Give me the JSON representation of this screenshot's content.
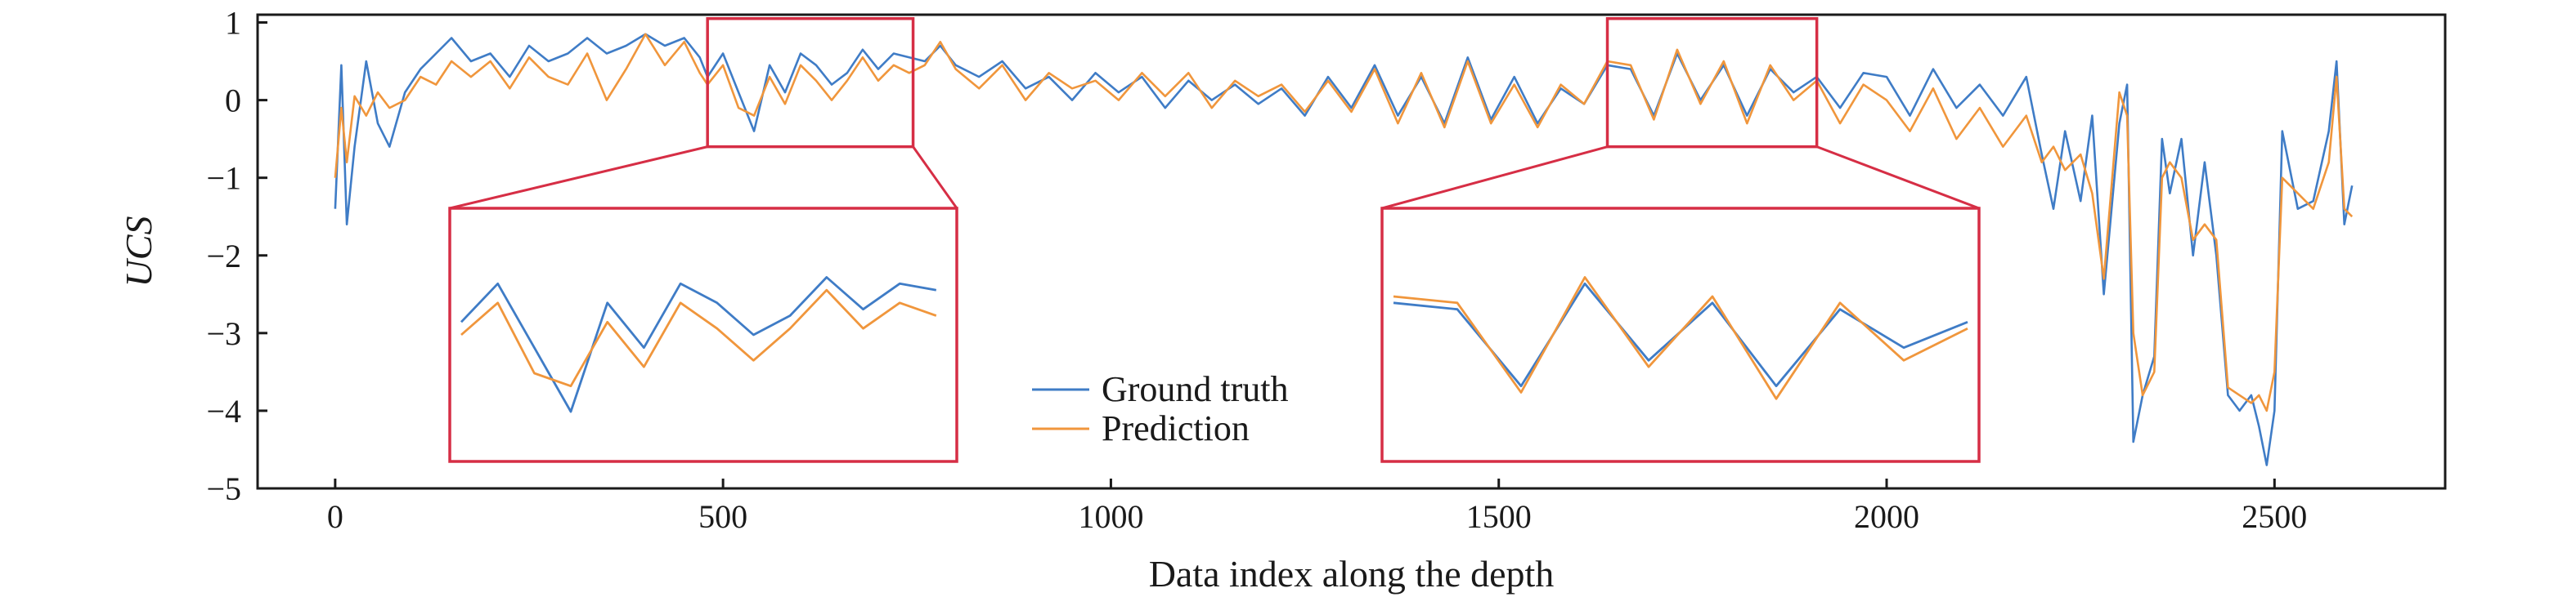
{
  "chart_data": {
    "type": "line",
    "xlabel": "Data index along the depth",
    "ylabel": "UCS",
    "xlim": [
      -100,
      2720
    ],
    "ylim": [
      -5,
      1.1
    ],
    "xticks": [
      0,
      500,
      1000,
      1500,
      2000,
      2500
    ],
    "yticks": [
      1,
      0,
      -1,
      -2,
      -3,
      -4,
      -5
    ],
    "grid": false,
    "legend_position": "lower-center",
    "series": [
      {
        "name": "Ground truth",
        "color": "#3f7cc6",
        "points": [
          [
            0,
            -1.4
          ],
          [
            8,
            0.45
          ],
          [
            15,
            -1.6
          ],
          [
            25,
            -0.6
          ],
          [
            40,
            0.5
          ],
          [
            55,
            -0.3
          ],
          [
            70,
            -0.6
          ],
          [
            90,
            0.1
          ],
          [
            110,
            0.4
          ],
          [
            130,
            0.6
          ],
          [
            150,
            0.8
          ],
          [
            175,
            0.5
          ],
          [
            200,
            0.6
          ],
          [
            225,
            0.3
          ],
          [
            250,
            0.7
          ],
          [
            275,
            0.5
          ],
          [
            300,
            0.6
          ],
          [
            325,
            0.8
          ],
          [
            350,
            0.6
          ],
          [
            375,
            0.7
          ],
          [
            400,
            0.85
          ],
          [
            425,
            0.7
          ],
          [
            450,
            0.8
          ],
          [
            470,
            0.55
          ],
          [
            480,
            0.3
          ],
          [
            500,
            0.6
          ],
          [
            520,
            0.1
          ],
          [
            540,
            -0.4
          ],
          [
            560,
            0.45
          ],
          [
            580,
            0.1
          ],
          [
            600,
            0.6
          ],
          [
            620,
            0.45
          ],
          [
            640,
            0.2
          ],
          [
            660,
            0.35
          ],
          [
            680,
            0.65
          ],
          [
            700,
            0.4
          ],
          [
            720,
            0.6
          ],
          [
            740,
            0.55
          ],
          [
            760,
            0.5
          ],
          [
            780,
            0.7
          ],
          [
            800,
            0.45
          ],
          [
            830,
            0.3
          ],
          [
            860,
            0.5
          ],
          [
            890,
            0.15
          ],
          [
            920,
            0.3
          ],
          [
            950,
            0.0
          ],
          [
            980,
            0.35
          ],
          [
            1010,
            0.1
          ],
          [
            1040,
            0.3
          ],
          [
            1070,
            -0.1
          ],
          [
            1100,
            0.25
          ],
          [
            1130,
            0.0
          ],
          [
            1160,
            0.2
          ],
          [
            1190,
            -0.05
          ],
          [
            1220,
            0.15
          ],
          [
            1250,
            -0.2
          ],
          [
            1280,
            0.3
          ],
          [
            1310,
            -0.1
          ],
          [
            1340,
            0.45
          ],
          [
            1370,
            -0.2
          ],
          [
            1400,
            0.3
          ],
          [
            1430,
            -0.3
          ],
          [
            1460,
            0.55
          ],
          [
            1490,
            -0.25
          ],
          [
            1520,
            0.3
          ],
          [
            1550,
            -0.3
          ],
          [
            1580,
            0.15
          ],
          [
            1610,
            -0.05
          ],
          [
            1640,
            0.45
          ],
          [
            1670,
            0.4
          ],
          [
            1700,
            -0.2
          ],
          [
            1730,
            0.6
          ],
          [
            1760,
            0.0
          ],
          [
            1790,
            0.45
          ],
          [
            1820,
            -0.2
          ],
          [
            1850,
            0.4
          ],
          [
            1880,
            0.1
          ],
          [
            1910,
            0.3
          ],
          [
            1940,
            -0.1
          ],
          [
            1970,
            0.35
          ],
          [
            2000,
            0.3
          ],
          [
            2030,
            -0.2
          ],
          [
            2060,
            0.4
          ],
          [
            2090,
            -0.1
          ],
          [
            2120,
            0.2
          ],
          [
            2150,
            -0.2
          ],
          [
            2180,
            0.3
          ],
          [
            2200,
            -0.7
          ],
          [
            2215,
            -1.4
          ],
          [
            2230,
            -0.4
          ],
          [
            2250,
            -1.3
          ],
          [
            2265,
            -0.2
          ],
          [
            2280,
            -2.5
          ],
          [
            2300,
            -0.3
          ],
          [
            2310,
            0.2
          ],
          [
            2318,
            -4.4
          ],
          [
            2330,
            -3.8
          ],
          [
            2345,
            -3.3
          ],
          [
            2355,
            -0.5
          ],
          [
            2365,
            -1.2
          ],
          [
            2380,
            -0.5
          ],
          [
            2395,
            -2.0
          ],
          [
            2410,
            -0.8
          ],
          [
            2425,
            -2.0
          ],
          [
            2440,
            -3.8
          ],
          [
            2455,
            -4.0
          ],
          [
            2470,
            -3.8
          ],
          [
            2480,
            -4.2
          ],
          [
            2490,
            -4.7
          ],
          [
            2500,
            -4.0
          ],
          [
            2510,
            -0.4
          ],
          [
            2530,
            -1.4
          ],
          [
            2550,
            -1.3
          ],
          [
            2570,
            -0.4
          ],
          [
            2580,
            0.5
          ],
          [
            2590,
            -1.6
          ],
          [
            2600,
            -1.1
          ]
        ]
      },
      {
        "name": "Prediction",
        "color": "#f0963c",
        "points": [
          [
            0,
            -1.0
          ],
          [
            8,
            -0.1
          ],
          [
            15,
            -0.8
          ],
          [
            25,
            0.05
          ],
          [
            40,
            -0.2
          ],
          [
            55,
            0.1
          ],
          [
            70,
            -0.1
          ],
          [
            90,
            0.0
          ],
          [
            110,
            0.3
          ],
          [
            130,
            0.2
          ],
          [
            150,
            0.5
          ],
          [
            175,
            0.3
          ],
          [
            200,
            0.5
          ],
          [
            225,
            0.15
          ],
          [
            250,
            0.55
          ],
          [
            275,
            0.3
          ],
          [
            300,
            0.2
          ],
          [
            325,
            0.6
          ],
          [
            350,
            0.0
          ],
          [
            375,
            0.4
          ],
          [
            400,
            0.85
          ],
          [
            425,
            0.45
          ],
          [
            450,
            0.75
          ],
          [
            470,
            0.35
          ],
          [
            480,
            0.2
          ],
          [
            500,
            0.45
          ],
          [
            520,
            -0.1
          ],
          [
            540,
            -0.2
          ],
          [
            560,
            0.3
          ],
          [
            580,
            -0.05
          ],
          [
            600,
            0.45
          ],
          [
            620,
            0.25
          ],
          [
            640,
            0.0
          ],
          [
            660,
            0.25
          ],
          [
            680,
            0.55
          ],
          [
            700,
            0.25
          ],
          [
            720,
            0.45
          ],
          [
            740,
            0.35
          ],
          [
            760,
            0.45
          ],
          [
            780,
            0.75
          ],
          [
            800,
            0.4
          ],
          [
            830,
            0.15
          ],
          [
            860,
            0.45
          ],
          [
            890,
            0.0
          ],
          [
            920,
            0.35
          ],
          [
            950,
            0.15
          ],
          [
            980,
            0.25
          ],
          [
            1010,
            0.0
          ],
          [
            1040,
            0.35
          ],
          [
            1070,
            0.05
          ],
          [
            1100,
            0.35
          ],
          [
            1130,
            -0.1
          ],
          [
            1160,
            0.25
          ],
          [
            1190,
            0.05
          ],
          [
            1220,
            0.2
          ],
          [
            1250,
            -0.15
          ],
          [
            1280,
            0.25
          ],
          [
            1310,
            -0.15
          ],
          [
            1340,
            0.4
          ],
          [
            1370,
            -0.3
          ],
          [
            1400,
            0.35
          ],
          [
            1430,
            -0.35
          ],
          [
            1460,
            0.5
          ],
          [
            1490,
            -0.3
          ],
          [
            1520,
            0.2
          ],
          [
            1550,
            -0.35
          ],
          [
            1580,
            0.2
          ],
          [
            1610,
            -0.05
          ],
          [
            1640,
            0.5
          ],
          [
            1670,
            0.45
          ],
          [
            1700,
            -0.25
          ],
          [
            1730,
            0.65
          ],
          [
            1760,
            -0.05
          ],
          [
            1790,
            0.5
          ],
          [
            1820,
            -0.3
          ],
          [
            1850,
            0.45
          ],
          [
            1880,
            0.0
          ],
          [
            1910,
            0.25
          ],
          [
            1940,
            -0.3
          ],
          [
            1970,
            0.2
          ],
          [
            2000,
            0.0
          ],
          [
            2030,
            -0.4
          ],
          [
            2060,
            0.15
          ],
          [
            2090,
            -0.5
          ],
          [
            2120,
            -0.1
          ],
          [
            2150,
            -0.6
          ],
          [
            2180,
            -0.2
          ],
          [
            2200,
            -0.8
          ],
          [
            2215,
            -0.6
          ],
          [
            2230,
            -0.9
          ],
          [
            2250,
            -0.7
          ],
          [
            2265,
            -1.2
          ],
          [
            2280,
            -2.3
          ],
          [
            2300,
            0.1
          ],
          [
            2310,
            -0.2
          ],
          [
            2318,
            -3.0
          ],
          [
            2330,
            -3.8
          ],
          [
            2345,
            -3.5
          ],
          [
            2355,
            -1.0
          ],
          [
            2365,
            -0.8
          ],
          [
            2380,
            -1.0
          ],
          [
            2395,
            -1.8
          ],
          [
            2410,
            -1.6
          ],
          [
            2425,
            -1.8
          ],
          [
            2440,
            -3.7
          ],
          [
            2455,
            -3.8
          ],
          [
            2470,
            -3.9
          ],
          [
            2480,
            -3.8
          ],
          [
            2490,
            -4.0
          ],
          [
            2500,
            -3.5
          ],
          [
            2510,
            -1.0
          ],
          [
            2530,
            -1.2
          ],
          [
            2550,
            -1.4
          ],
          [
            2570,
            -0.8
          ],
          [
            2580,
            0.3
          ],
          [
            2590,
            -1.4
          ],
          [
            2600,
            -1.5
          ]
        ]
      }
    ],
    "zoom_windows": [
      {
        "x_range": [
          480,
          745
        ],
        "y_range": [
          -0.6,
          1.05
        ]
      },
      {
        "x_range": [
          1640,
          1910
        ],
        "y_range": [
          -0.6,
          1.05
        ]
      }
    ]
  }
}
